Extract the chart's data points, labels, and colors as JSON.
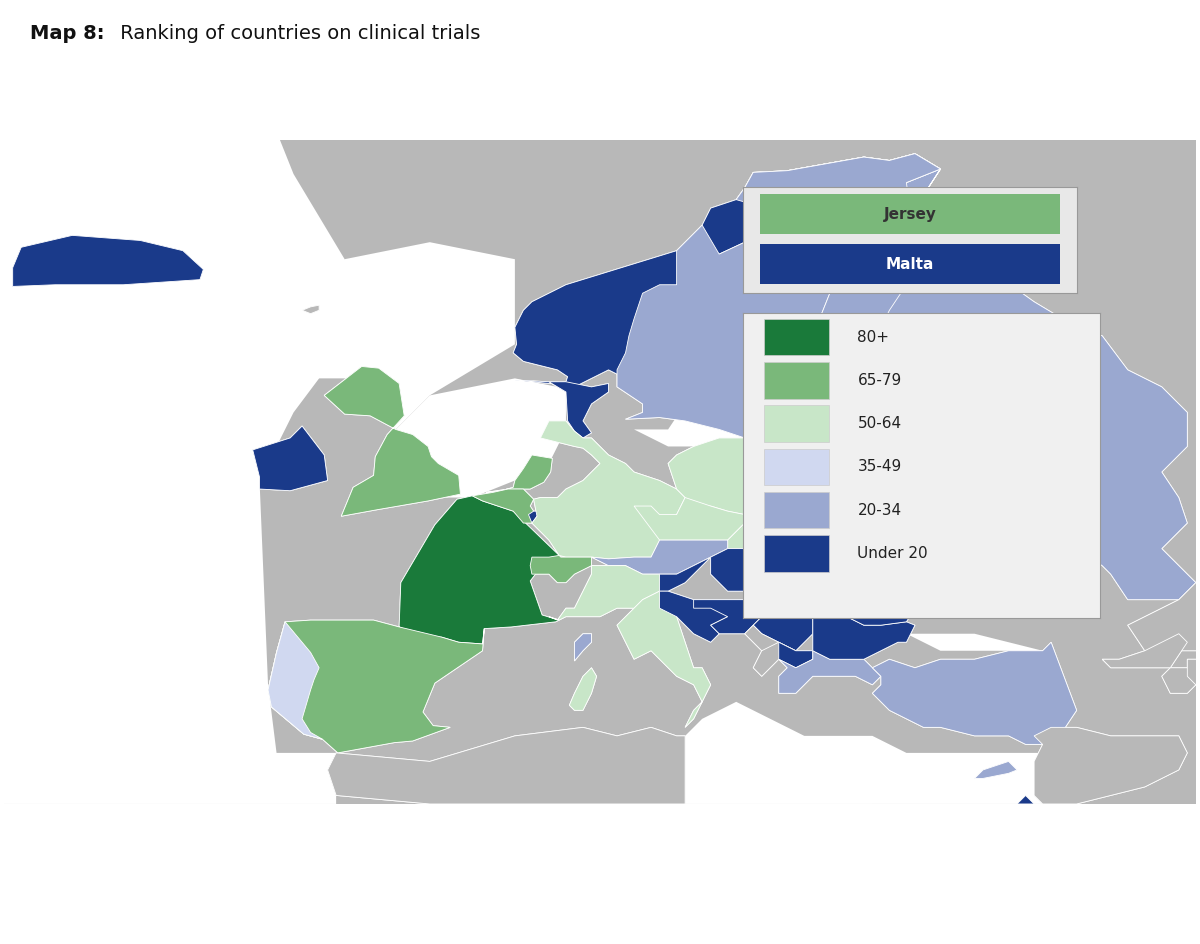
{
  "title_bold": "Map 8:",
  "title_normal": " Ranking of countries on clinical trials",
  "background_color": "#ffffff",
  "ocean_color": "#ffffff",
  "land_bg_color": "#b8b8b8",
  "colors": {
    "80+": "#1a7a3a",
    "65-79": "#7ab87a",
    "50-64": "#c8e6c8",
    "35-49": "#d0d8f0",
    "20-34": "#9aa8d0",
    "Under 20": "#1a3a8a",
    "no_data": "#b8b8b8",
    "jersey": "#7ab87a",
    "malta": "#1a3a8a",
    "border": "#ffffff"
  },
  "legend_categories": [
    {
      "label": "80+",
      "color": "#1a7a3a"
    },
    {
      "label": "65-79",
      "color": "#7ab87a"
    },
    {
      "label": "50-64",
      "color": "#c8e6c8"
    },
    {
      "label": "35-49",
      "color": "#d0d8f0"
    },
    {
      "label": "20-34",
      "color": "#9aa8d0"
    },
    {
      "label": "Under 20",
      "color": "#1a3a8a"
    }
  ],
  "special_legend": [
    {
      "label": "Jersey",
      "color": "#7ab87a",
      "text_color": "#333333"
    },
    {
      "label": "Malta",
      "color": "#1a3a8a",
      "text_color": "#ffffff"
    }
  ]
}
